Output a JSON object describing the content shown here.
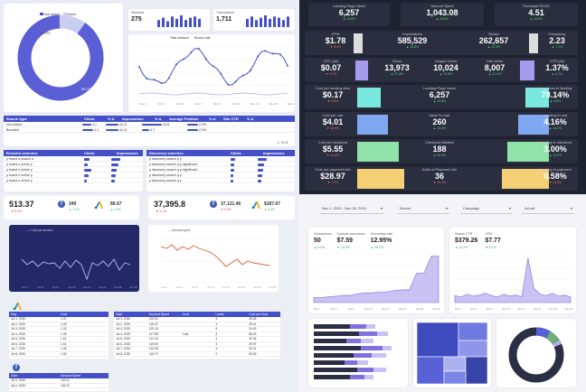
{
  "q1": {
    "legend": [
      "Non-brand",
      "Brand"
    ],
    "donut_labels": [
      "10.3%",
      "89.7%"
    ],
    "kpi1": {
      "label": "Sessions",
      "value": "275"
    },
    "kpi2": {
      "label": "Transactions",
      "value": "1,711"
    },
    "line_legend": [
      "Total sessions",
      "Bounce rate"
    ],
    "line_x": [
      "Nov 1",
      "Nov 3",
      "Nov 5",
      "Nov 7",
      "Nov 9",
      "Nov 11",
      "Nov 13",
      "Nov 15",
      "Nov 17"
    ],
    "table1": {
      "headers": [
        "Search type",
        "Clicks",
        "% Δ",
        "Impressions",
        "% Δ",
        "Average Position",
        "% Δ",
        "Site CTR",
        "% Δ"
      ],
      "rows": [
        [
          "Non-brand",
          "4,1",
          "",
          "44,11",
          "",
          "15.8",
          "",
          "2.9%",
          ""
        ],
        [
          "Branded",
          "4,1",
          "",
          "44,11",
          "",
          "4.7",
          "",
          "2.9%",
          ""
        ]
      ]
    },
    "table2": {
      "headers": [
        "Branded searches",
        "Clicks",
        "Impressions"
      ],
      "rows": [
        [
          "p brand a search a",
          "",
          ""
        ],
        [
          "p brand o online p",
          "",
          ""
        ],
        [
          "p brand o online p",
          "",
          ""
        ],
        [
          "p brand o online p",
          "",
          ""
        ],
        [
          "p brand o online p",
          "",
          ""
        ]
      ]
    },
    "table3": {
      "headers": [
        "Discovery searches",
        "Clicks",
        "Impressions"
      ],
      "rows": [
        [
          "p discovery search p p",
          "",
          ""
        ],
        [
          "p discovery search q p significant",
          "",
          ""
        ],
        [
          "p discovery search q p significant",
          "",
          ""
        ],
        [
          "p discovery search q p",
          "",
          ""
        ],
        [
          "p discovery search q p",
          "",
          ""
        ]
      ]
    },
    "pager": "1 - 5 / 5"
  },
  "q2": {
    "kpis": [
      {
        "t": "Landing Page views",
        "v": "6,257",
        "d": "▲ 13.8%",
        "cls": "pos"
      },
      {
        "t": "Amount Spent",
        "v": "1,043.08",
        "d": "▲ 10.8%",
        "cls": "pos"
      },
      {
        "t": "Purchase ROAS",
        "v": "4.51",
        "d": "▲ 45.8%",
        "cls": "pos"
      },
      {
        "t": "CPM",
        "v": "$1.78",
        "d": "▼ 5.4%",
        "cls": "neg"
      },
      {
        "t": "Impressions",
        "v": "585,529",
        "d": "▲ 16.8%",
        "cls": "pos"
      },
      {
        "t": "Reach",
        "v": "262,657",
        "d": "▲ 11.9%",
        "cls": "pos"
      },
      {
        "t": "Frequency",
        "v": "2.23",
        "d": "▲ 7.1%",
        "cls": "pos"
      },
      {
        "t": "CPC (All)",
        "v": "$0.07",
        "d": "▼ 4.2%",
        "cls": "neg"
      },
      {
        "t": "Clicks",
        "v": "13,973",
        "d": "▲ 21.8%",
        "cls": "pos"
      },
      {
        "t": "Unique Clicks",
        "v": "10,024",
        "d": "▲ 19.8%",
        "cls": "pos"
      },
      {
        "t": "Link clicks",
        "v": "8,007",
        "d": "▲ 21.2%",
        "cls": "pos"
      },
      {
        "t": "CTR (All)",
        "v": "1.37%",
        "d": "▲ 4.2%",
        "cls": "pos"
      },
      {
        "t": "Cost per landing view",
        "v": "$0.17",
        "d": "▼ 3.8%",
        "cls": "neg"
      },
      {
        "t": "Landing Page views",
        "v": "6,257",
        "d": "▲ 13.8%",
        "cls": "pos"
      },
      {
        "t": "Link clicks to landing",
        "v": "78.14%",
        "d": "▲ 6.8%",
        "cls": "pos"
      },
      {
        "t": "Cost per cart",
        "v": "$4.01",
        "d": "▼ 18.9%",
        "cls": "neg"
      },
      {
        "t": "Adds To Cart",
        "v": "260",
        "d": "▲ 33.3%",
        "cls": "pos"
      },
      {
        "t": "Landing to cart",
        "v": "4.16%",
        "d": "▲ 16.2%",
        "cls": "pos"
      },
      {
        "t": "Cost per checkout",
        "v": "$5.55",
        "d": "▼ 14.4%",
        "cls": "neg"
      },
      {
        "t": "Checkout Initiated",
        "v": "188",
        "d": "▲ 25.3%",
        "cls": "pos"
      },
      {
        "t": "Landing to checkout",
        "v": "3.00%",
        "d": "▲ 10.2%",
        "cls": "pos"
      },
      {
        "t": "Cost per payment info",
        "v": "$28.97",
        "d": "▼ 7.2%",
        "cls": "neg"
      },
      {
        "t": "Adds of Payment Info",
        "v": "36",
        "d": "▼ 14.3%",
        "cls": "neg"
      },
      {
        "t": "Landing to payment",
        "v": "0.58%",
        "d": "▼ 24.9%",
        "cls": "neg"
      }
    ]
  },
  "q3": {
    "k1": {
      "v": "513.37",
      "d": "▼ 8.2%"
    },
    "k2": {
      "v": "349",
      "d": "▲ 7.1%"
    },
    "k3": {
      "v": "86.67",
      "d": "▲ 1.3%"
    },
    "k4": {
      "v": "37,395.8",
      "d": "▼ 9.1%"
    },
    "k5": {
      "v": "37,121.46",
      "d": "▼ 9.2%"
    },
    "k6": {
      "v": "$187.67",
      "d": "▲ 4.3%"
    },
    "chart1_legend": "Cost per session",
    "chart2_legend": "Amount spent",
    "x1": [
      "Jun 1",
      "Jun 5",
      "Jun 9",
      "Jun 13",
      "Jun 17",
      "Jun 21",
      "Jun 25",
      "Jun 29"
    ],
    "t1": {
      "headers": [
        "Day",
        "Cost"
      ],
      "rows": [
        [
          "Jul 1, 2020",
          "1.37"
        ],
        [
          "Jul 2, 2020",
          "1.45"
        ],
        [
          "Jul 3, 2020",
          "1.32"
        ],
        [
          "Jul 4, 2020",
          "1.28"
        ],
        [
          "Jul 5, 2020",
          "1.51"
        ],
        [
          "Jul 6, 2020",
          "1.41"
        ],
        [
          "Jul 7, 2020",
          "1.36"
        ],
        [
          "Jul 8, 2020",
          "1.30"
        ]
      ]
    },
    "t2": {
      "headers": [
        "Date",
        "Amount Spent",
        "Cost",
        "Leads",
        "Cost per lead"
      ],
      "rows": [
        [
          "Jul 1, 2020",
          "120.31",
          "",
          "4",
          "30.08"
        ],
        [
          "Jul 2, 2020",
          "118.22",
          "",
          "3",
          "39.41"
        ],
        [
          "Jul 3, 2020",
          "122.10",
          "",
          "5",
          "24.42"
        ],
        [
          "Jul 4, 2020",
          "117.85",
          "Cost",
          "2",
          "58.93"
        ],
        [
          "Jul 5, 2020",
          "121.44",
          "",
          "4",
          "30.36"
        ],
        [
          "Jul 6, 2020",
          "119.90",
          "",
          "3",
          "39.97"
        ],
        [
          "Jul 7, 2020",
          "120.05",
          "",
          "4",
          "30.01"
        ],
        [
          "Jul 8, 2020",
          "118.70",
          "",
          "2",
          "59.35"
        ]
      ]
    },
    "t3": {
      "headers": [
        "Date",
        "Amount Spent"
      ],
      "rows": [
        [
          "Jul 1, 2020",
          "120.31"
        ],
        [
          "Jul 2, 2020",
          "118.22"
        ]
      ]
    }
  },
  "q4": {
    "date_range": "Nov 1, 2019 - Nov 30, 2019",
    "filters": [
      "Device",
      "Campaign",
      "Ad set"
    ],
    "c1": [
      {
        "t": "Conversions",
        "v": "50",
        "d": "▲ 2.0%"
      },
      {
        "t": "Cost per conversion",
        "v": "$7.59",
        "d": "▼ 18.3%"
      },
      {
        "t": "Conversion rate",
        "v": "12.95%",
        "d": "▲ 35.1%"
      }
    ],
    "c2": [
      {
        "t": "Search CTR",
        "v": "$379.26",
        "d": "▲ 14.2%"
      },
      {
        "t": "CPM",
        "v": "$7.77",
        "d": "▼ 5.1%"
      }
    ],
    "x": [
      "Nov 1",
      "Nov 3",
      "Nov 5",
      "Nov 7",
      "Nov 9",
      "Nov 11",
      "Nov 13",
      "Nov 15",
      "Nov 17",
      "Nov 19",
      "Nov 21",
      "Nov 23",
      "Nov 25",
      "Nov 27",
      "Nov 29"
    ]
  },
  "colors": {
    "accent": "#4350c8",
    "cyan": "#7be8e0",
    "lavender": "#a79bf0",
    "green": "#8fe3a8",
    "yellow": "#f5cf73",
    "blue": "#7fa8f0",
    "orange": "#e0603c"
  }
}
